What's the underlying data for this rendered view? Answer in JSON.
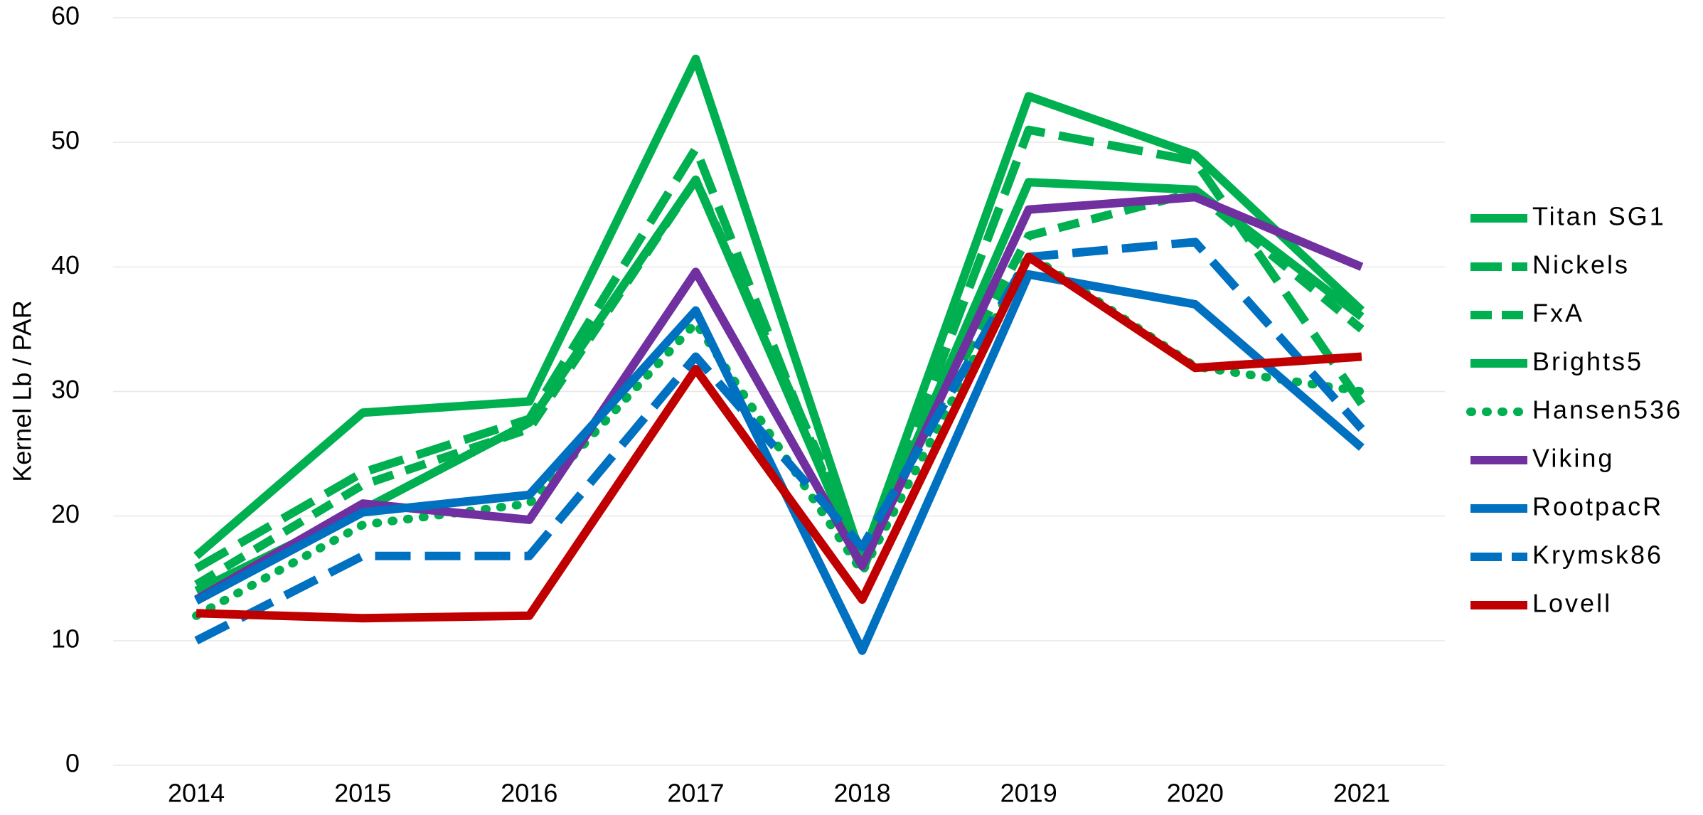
{
  "chart_data": {
    "type": "line",
    "y_label": "Kernel Lb / PAR",
    "categories": [
      "2014",
      "2015",
      "2016",
      "2017",
      "2018",
      "2019",
      "2020",
      "2021"
    ],
    "ylim": [
      0,
      60
    ],
    "yticks": [
      0,
      10,
      20,
      30,
      40,
      50,
      60
    ],
    "grid": true,
    "legend": "right",
    "series": [
      {
        "name": "Titan SG1",
        "color": "#00b050",
        "dash": "solid",
        "values": [
          16.8,
          28.3,
          29.2,
          56.7,
          16.5,
          53.7,
          49.0,
          36.5
        ]
      },
      {
        "name": "Nickels",
        "color": "#00b050",
        "dash": "long",
        "values": [
          15.8,
          23.5,
          27.8,
          49.5,
          15.5,
          51.0,
          48.5,
          29.0
        ]
      },
      {
        "name": "FxA",
        "color": "#00b050",
        "dash": "dash",
        "values": [
          14.5,
          22.5,
          27.0,
          47.0,
          17.0,
          42.5,
          46.0,
          35.0
        ]
      },
      {
        "name": "Brights5",
        "color": "#00b050",
        "dash": "solid",
        "values": [
          14.0,
          20.5,
          27.5,
          47.0,
          16.0,
          46.8,
          46.2,
          36.0
        ]
      },
      {
        "name": "Hansen536",
        "color": "#00b050",
        "dash": "dot",
        "values": [
          12.0,
          19.3,
          21.0,
          35.5,
          15.5,
          41.0,
          32.0,
          30.0
        ]
      },
      {
        "name": "Viking",
        "color": "#7030a0",
        "dash": "solid",
        "values": [
          13.3,
          21.0,
          19.7,
          39.6,
          16.0,
          44.6,
          45.6,
          40.0
        ]
      },
      {
        "name": "RootpacR",
        "color": "#0070c0",
        "dash": "solid",
        "values": [
          13.2,
          20.3,
          21.7,
          36.5,
          9.2,
          39.4,
          37.0,
          25.5
        ]
      },
      {
        "name": "Krymsk86",
        "color": "#0070c0",
        "dash": "long",
        "values": [
          10.0,
          16.8,
          16.8,
          32.8,
          17.5,
          40.8,
          42.0,
          27.0
        ]
      },
      {
        "name": "Lovell",
        "color": "#c00000",
        "dash": "solid",
        "values": [
          12.2,
          11.8,
          12.0,
          31.8,
          13.3,
          40.8,
          31.9,
          32.8
        ]
      }
    ]
  }
}
